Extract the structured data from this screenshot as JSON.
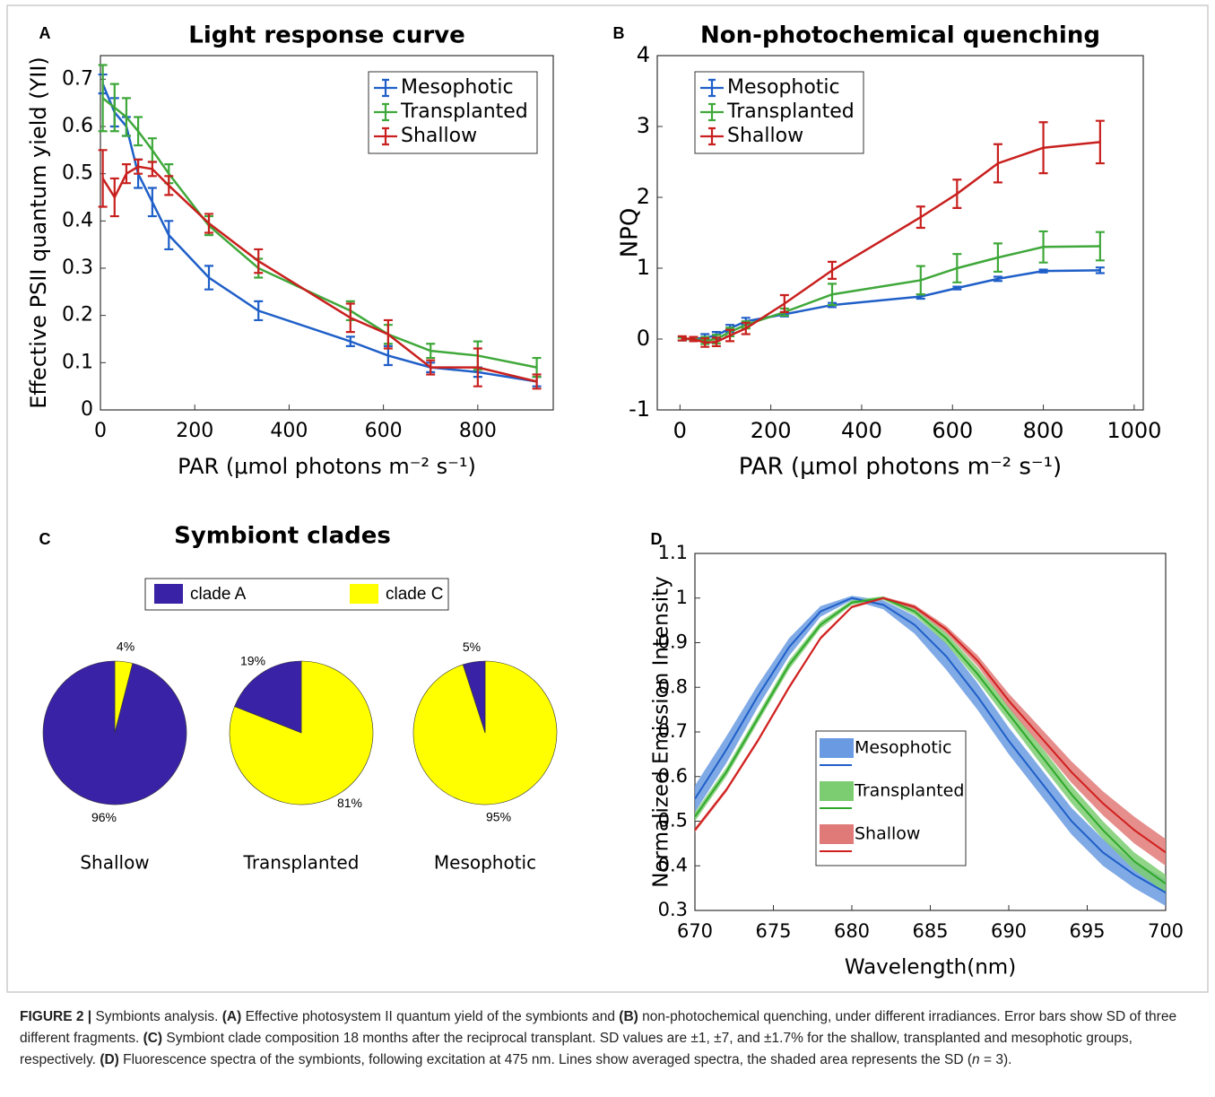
{
  "chart_data": [
    {
      "type": "line",
      "panel": "A",
      "title": "Light response curve",
      "xlabel": "PAR (μmol photons m⁻² s⁻¹)",
      "ylabel": "Effective PSII quantum yield (YII)",
      "x": [
        5,
        30,
        55,
        80,
        110,
        145,
        230,
        335,
        530,
        610,
        700,
        800,
        925
      ],
      "xlim": [
        0,
        960
      ],
      "xticks": [
        0,
        200,
        400,
        600,
        800
      ],
      "ylim": [
        0,
        0.75
      ],
      "yticks": [
        0,
        0.1,
        0.2,
        0.3,
        0.4,
        0.5,
        0.6,
        0.7
      ],
      "legend": "top-right",
      "series": [
        {
          "name": "Mesophotic",
          "color": "#1f5fc8",
          "values": [
            0.69,
            0.63,
            0.6,
            0.5,
            0.44,
            0.37,
            0.28,
            0.21,
            0.145,
            0.115,
            0.09,
            0.08,
            0.06
          ],
          "errors": [
            0.02,
            0.03,
            0.02,
            0.03,
            0.03,
            0.03,
            0.025,
            0.02,
            0.01,
            0.02,
            0.01,
            0.01,
            0.01
          ]
        },
        {
          "name": "Transplanted",
          "color": "#3fa83a",
          "values": [
            0.66,
            0.64,
            0.62,
            0.59,
            0.55,
            0.5,
            0.39,
            0.3,
            0.21,
            0.16,
            0.125,
            0.115,
            0.09
          ],
          "errors": [
            0.07,
            0.05,
            0.04,
            0.03,
            0.025,
            0.02,
            0.02,
            0.02,
            0.02,
            0.02,
            0.015,
            0.03,
            0.02
          ]
        },
        {
          "name": "Shallow",
          "color": "#c8201e",
          "values": [
            0.49,
            0.45,
            0.5,
            0.515,
            0.51,
            0.475,
            0.395,
            0.315,
            0.195,
            0.16,
            0.09,
            0.09,
            0.06
          ],
          "errors": [
            0.06,
            0.04,
            0.02,
            0.015,
            0.015,
            0.02,
            0.02,
            0.025,
            0.03,
            0.03,
            0.015,
            0.04,
            0.015
          ]
        }
      ]
    },
    {
      "type": "line",
      "panel": "B",
      "title": "Non-photochemical quenching",
      "xlabel": "PAR (μmol photons m⁻² s⁻¹)",
      "ylabel": "NPQ",
      "x": [
        5,
        30,
        55,
        80,
        110,
        145,
        230,
        335,
        530,
        610,
        700,
        800,
        925
      ],
      "xlim": [
        -50,
        1020
      ],
      "xticks": [
        0,
        200,
        400,
        600,
        800,
        1000
      ],
      "ylim": [
        -1,
        4
      ],
      "yticks": [
        -1,
        0,
        1,
        2,
        3,
        4
      ],
      "legend": "top-left",
      "series": [
        {
          "name": "Mesophotic",
          "color": "#1f5fc8",
          "values": [
            0,
            0,
            0.02,
            0.05,
            0.15,
            0.25,
            0.35,
            0.48,
            0.6,
            0.72,
            0.85,
            0.96,
            0.97
          ],
          "errors": [
            0.02,
            0.02,
            0.05,
            0.05,
            0.05,
            0.05,
            0.03,
            0.03,
            0.03,
            0.02,
            0.03,
            0.02,
            0.04
          ]
        },
        {
          "name": "Transplanted",
          "color": "#3fa83a",
          "values": [
            0,
            0,
            -0.02,
            0,
            0.1,
            0.2,
            0.38,
            0.63,
            0.83,
            1.0,
            1.15,
            1.3,
            1.31
          ],
          "errors": [
            0.02,
            0.02,
            0.05,
            0.06,
            0.06,
            0.05,
            0.05,
            0.15,
            0.2,
            0.2,
            0.2,
            0.22,
            0.2
          ]
        },
        {
          "name": "Shallow",
          "color": "#c8201e",
          "values": [
            0.01,
            0,
            -0.05,
            -0.04,
            0.05,
            0.15,
            0.5,
            0.97,
            1.72,
            2.05,
            2.48,
            2.7,
            2.78
          ],
          "errors": [
            0.03,
            0.03,
            0.06,
            0.06,
            0.08,
            0.08,
            0.12,
            0.12,
            0.15,
            0.2,
            0.27,
            0.36,
            0.3
          ]
        }
      ]
    },
    {
      "type": "pie",
      "panel": "C",
      "title": "Symbiont clades",
      "categories": [
        "clade A",
        "clade C"
      ],
      "colors": [
        "#3a22a6",
        "#ffff00"
      ],
      "pies": [
        {
          "name": "Shallow",
          "values": [
            96,
            4
          ],
          "value_labels": [
            "96%",
            "4%"
          ]
        },
        {
          "name": "Transplanted",
          "values": [
            19,
            81
          ],
          "value_labels": [
            "19%",
            "81%"
          ]
        },
        {
          "name": "Mesophotic",
          "values": [
            5,
            95
          ],
          "value_labels": [
            "5%",
            "95%"
          ]
        }
      ]
    },
    {
      "type": "band",
      "panel": "D",
      "xlabel": "Wavelength(nm)",
      "ylabel": "Normalized Emission Intensity",
      "x": [
        670,
        672,
        674,
        676,
        678,
        680,
        682,
        684,
        686,
        688,
        690,
        692,
        694,
        696,
        698,
        700
      ],
      "xlim": [
        670,
        700
      ],
      "xticks": [
        670,
        675,
        680,
        685,
        690,
        695,
        700
      ],
      "ylim": [
        0.3,
        1.1
      ],
      "yticks": [
        0.3,
        0.4,
        0.5,
        0.6,
        0.7,
        0.8,
        0.9,
        1,
        1.1
      ],
      "legend": "center",
      "series": [
        {
          "name": "Mesophotic",
          "color": "#1f5fc8",
          "band_color": "#6a9be2",
          "values": [
            0.55,
            0.66,
            0.78,
            0.89,
            0.97,
            1.0,
            0.985,
            0.94,
            0.87,
            0.78,
            0.68,
            0.59,
            0.5,
            0.43,
            0.38,
            0.34
          ],
          "sd": [
            0.03,
            0.03,
            0.025,
            0.02,
            0.012,
            0.005,
            0.01,
            0.02,
            0.03,
            0.03,
            0.03,
            0.03,
            0.03,
            0.03,
            0.03,
            0.03
          ]
        },
        {
          "name": "Transplanted",
          "color": "#2ea82a",
          "band_color": "#7ccc72",
          "values": [
            0.51,
            0.61,
            0.73,
            0.85,
            0.94,
            0.99,
            1.0,
            0.97,
            0.91,
            0.83,
            0.74,
            0.65,
            0.56,
            0.48,
            0.41,
            0.36
          ],
          "sd": [
            0.01,
            0.01,
            0.01,
            0.01,
            0.008,
            0.005,
            0.004,
            0.008,
            0.012,
            0.015,
            0.017,
            0.02,
            0.02,
            0.02,
            0.02,
            0.02
          ]
        },
        {
          "name": "Shallow",
          "color": "#d0201e",
          "band_color": "#e07a78",
          "values": [
            0.48,
            0.57,
            0.68,
            0.8,
            0.91,
            0.98,
            1.0,
            0.98,
            0.93,
            0.86,
            0.77,
            0.69,
            0.61,
            0.54,
            0.48,
            0.43
          ],
          "sd": [
            0.005,
            0.005,
            0.005,
            0.005,
            0.004,
            0.003,
            0.003,
            0.005,
            0.008,
            0.012,
            0.016,
            0.02,
            0.024,
            0.027,
            0.03,
            0.03
          ]
        }
      ]
    }
  ],
  "caption": {
    "parts": [
      {
        "text": "FIGURE 2 |",
        "bold": true
      },
      {
        "text": " Symbionts analysis. "
      },
      {
        "text": "(A)",
        "bold": true
      },
      {
        "text": " Effective photosystem II quantum yield of the symbionts and "
      },
      {
        "text": "(B)",
        "bold": true
      },
      {
        "text": " non-photochemical quenching, under different irradiances. Error bars show SD of three different fragments. "
      },
      {
        "text": "(C)",
        "bold": true
      },
      {
        "text": " Symbiont clade composition 18 months after the reciprocal transplant. SD values are ±1, ±7, and ±1.7% for the shallow, transplanted and mesophotic groups, respectively. "
      },
      {
        "text": "(D)",
        "bold": true
      },
      {
        "text": " Fluorescence spectra of the symbionts, following excitation at 475 nm. Lines show averaged spectra, the shaded area represents the SD ("
      },
      {
        "text": "n",
        "italic": true
      },
      {
        "text": " = 3)."
      }
    ]
  }
}
